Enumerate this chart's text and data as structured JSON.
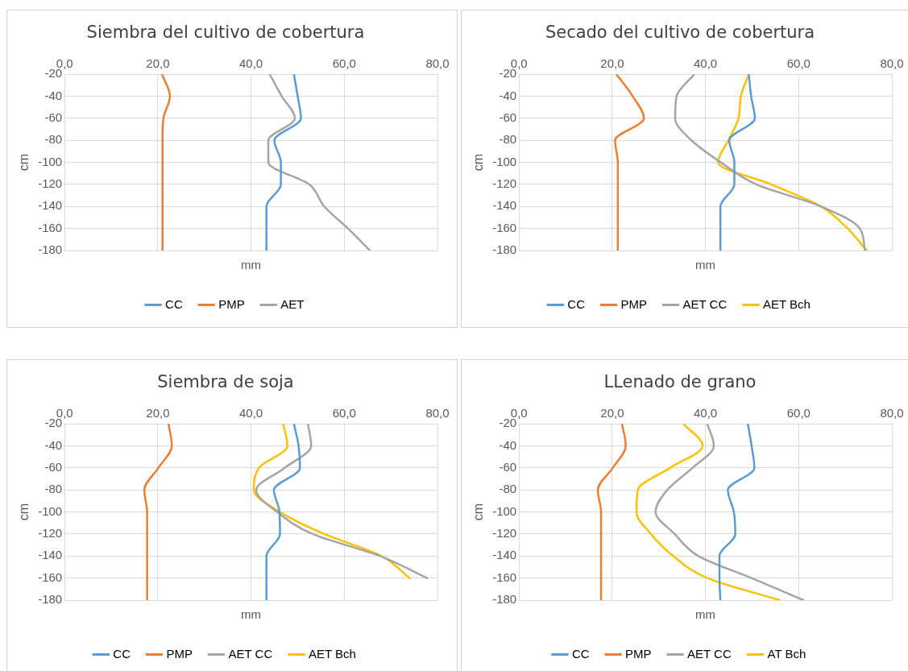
{
  "chart_data": [
    {
      "type": "line",
      "title": "Siembra del cultivo de cobertura",
      "xlabel": "mm",
      "ylabel": "cm",
      "xlim": [
        0,
        80
      ],
      "ylim": [
        -180,
        -20
      ],
      "xticks": [
        {
          "value": 0,
          "label": "0,0"
        },
        {
          "value": 20,
          "label": "20,0"
        },
        {
          "value": 40,
          "label": "40,0"
        },
        {
          "value": 60,
          "label": "60,0"
        },
        {
          "value": 80,
          "label": "80,0"
        }
      ],
      "yticks": [
        -20,
        -40,
        -60,
        -80,
        -100,
        -120,
        -140,
        -160,
        -180
      ],
      "grid": true,
      "legend": "bottom",
      "marker": "none",
      "line_style": "solid",
      "series": [
        {
          "name": "CC",
          "color": "#5b9bd5",
          "x": [
            49.2,
            50.0,
            50.7,
            45.0,
            46.4,
            46.4,
            43.3,
            43.3,
            43.3
          ],
          "values": [
            -20,
            -40,
            -60,
            -80,
            -100,
            -120,
            -140,
            -160,
            -180
          ]
        },
        {
          "name": "PMP",
          "color": "#ed7d31",
          "x": [
            20.9,
            22.6,
            21.2,
            21.0,
            21.0,
            21.0,
            21.0,
            21.0,
            21.0
          ],
          "values": [
            -20,
            -40,
            -60,
            -80,
            -100,
            -120,
            -140,
            -160,
            -180
          ]
        },
        {
          "name": "AET",
          "color": "#a5a5a5",
          "x": [
            44.0,
            46.6,
            49.4,
            43.7,
            43.7,
            52.5,
            55.7,
            60.8,
            65.5
          ],
          "values": [
            -20,
            -40,
            -60,
            -80,
            -100,
            -120,
            -140,
            -160,
            -180
          ]
        }
      ]
    },
    {
      "type": "line",
      "title": "Secado del cultivo de cobertura",
      "xlabel": "mm",
      "ylabel": "cm",
      "xlim": [
        0,
        80
      ],
      "ylim": [
        -180,
        -20
      ],
      "xticks": [
        {
          "value": 0,
          "label": "0,0"
        },
        {
          "value": 20,
          "label": "20,0"
        },
        {
          "value": 40,
          "label": "40,0"
        },
        {
          "value": 60,
          "label": "60,0"
        },
        {
          "value": 80,
          "label": "80,0"
        }
      ],
      "yticks": [
        -20,
        -40,
        -60,
        -80,
        -100,
        -120,
        -140,
        -160,
        -180
      ],
      "grid": true,
      "legend": "bottom",
      "marker": "none",
      "line_style": "solid",
      "series": [
        {
          "name": "CC",
          "color": "#5b9bd5",
          "x": [
            49.3,
            49.8,
            50.6,
            45.1,
            46.2,
            46.2,
            43.2,
            43.2,
            43.2
          ],
          "values": [
            -20,
            -40,
            -60,
            -80,
            -100,
            -120,
            -140,
            -160,
            -180
          ]
        },
        {
          "name": "PMP",
          "color": "#ed7d31",
          "x": [
            20.9,
            24.4,
            26.8,
            20.6,
            21.2,
            21.2,
            21.2,
            21.2,
            21.2
          ],
          "values": [
            -20,
            -40,
            -60,
            -80,
            -100,
            -120,
            -140,
            -160,
            -180
          ]
        },
        {
          "name": "AET CC",
          "color": "#a5a5a5",
          "x": [
            37.6,
            33.8,
            33.5,
            37.0,
            43.3,
            50.9,
            64.8,
            73.1,
            74.2
          ],
          "values": [
            -20,
            -40,
            -60,
            -80,
            -100,
            -120,
            -140,
            -160,
            -180
          ]
        },
        {
          "name": "AET Bch",
          "color": "#ffc000",
          "x": [
            49.3,
            47.6,
            47.1,
            44.9,
            42.7,
            54.1,
            64.8,
            70.5,
            74.6
          ],
          "values": [
            -20,
            -40,
            -60,
            -80,
            -100,
            -120,
            -140,
            -160,
            -180
          ]
        }
      ]
    },
    {
      "type": "line",
      "title": "Siembra de soja",
      "xlabel": "mm",
      "ylabel": "cm",
      "xlim": [
        0,
        80
      ],
      "ylim": [
        -180,
        -20
      ],
      "xticks": [
        {
          "value": 0,
          "label": "0,0"
        },
        {
          "value": 20,
          "label": "20,0"
        },
        {
          "value": 40,
          "label": "40,0"
        },
        {
          "value": 60,
          "label": "60,0"
        },
        {
          "value": 80,
          "label": "80,0"
        }
      ],
      "yticks": [
        -20,
        -40,
        -60,
        -80,
        -100,
        -120,
        -140,
        -160,
        -180
      ],
      "grid": true,
      "legend": "bottom",
      "marker": "none",
      "line_style": "solid",
      "series": [
        {
          "name": "CC",
          "color": "#5b9bd5",
          "x": [
            49.2,
            50.2,
            50.5,
            44.9,
            46.1,
            46.2,
            43.3,
            43.3,
            43.3
          ],
          "values": [
            -20,
            -40,
            -60,
            -80,
            -100,
            -120,
            -140,
            -160,
            -180
          ]
        },
        {
          "name": "PMP",
          "color": "#ed7d31",
          "x": [
            22.3,
            23.0,
            20.1,
            17.1,
            17.7,
            17.7,
            17.7,
            17.7,
            17.7
          ],
          "values": [
            -20,
            -40,
            -60,
            -80,
            -100,
            -120,
            -140,
            -160,
            -180
          ]
        },
        {
          "name": "AET CC",
          "color": "#a5a5a5",
          "x": [
            52.2,
            52.9,
            47.2,
            41.1,
            45.6,
            53.2,
            67.7,
            77.8
          ],
          "values": [
            -20,
            -40,
            -60,
            -80,
            -100,
            -120,
            -140,
            -160
          ]
        },
        {
          "name": "AET Bch",
          "color": "#ffc000",
          "x": [
            46.9,
            47.8,
            41.7,
            40.6,
            46.2,
            55.7,
            68.0,
            74.0
          ],
          "values": [
            -20,
            -40,
            -60,
            -80,
            -100,
            -120,
            -140,
            -160
          ]
        }
      ]
    },
    {
      "type": "line",
      "title": "LLenado de grano",
      "xlabel": "mm",
      "ylabel": "cm",
      "xlim": [
        0,
        80
      ],
      "ylim": [
        -180,
        -20
      ],
      "xticks": [
        {
          "value": 0,
          "label": "0,0"
        },
        {
          "value": 20,
          "label": "20,0"
        },
        {
          "value": 40,
          "label": "40,0"
        },
        {
          "value": 60,
          "label": "60,0"
        },
        {
          "value": 80,
          "label": "80,0"
        }
      ],
      "yticks": [
        -20,
        -40,
        -60,
        -80,
        -100,
        -120,
        -140,
        -160,
        -180
      ],
      "grid": true,
      "legend": "bottom",
      "marker": "none",
      "line_style": "solid",
      "series": [
        {
          "name": "CC",
          "color": "#5b9bd5",
          "x": [
            49.1,
            49.9,
            50.5,
            44.8,
            46.1,
            46.4,
            43.0,
            43.0,
            43.2
          ],
          "values": [
            -20,
            -40,
            -60,
            -80,
            -100,
            -120,
            -140,
            -160,
            -180
          ]
        },
        {
          "name": "PMP",
          "color": "#ed7d31",
          "x": [
            22.1,
            22.9,
            20.1,
            16.9,
            17.6,
            17.6,
            17.6,
            17.6,
            17.6
          ],
          "values": [
            -20,
            -40,
            -60,
            -80,
            -100,
            -120,
            -140,
            -160,
            -180
          ]
        },
        {
          "name": "AET CC",
          "color": "#a5a5a5",
          "x": [
            40.4,
            41.8,
            37.2,
            31.8,
            29.3,
            33.4,
            38.5,
            49.9,
            61.0
          ],
          "values": [
            -20,
            -40,
            -60,
            -80,
            -100,
            -120,
            -140,
            -160,
            -180
          ]
        },
        {
          "name": "AT Bch",
          "color": "#ffc000",
          "x": [
            35.3,
            39.4,
            32.4,
            25.5,
            25.2,
            28.3,
            33.1,
            40.4,
            55.9
          ],
          "values": [
            -20,
            -40,
            -60,
            -80,
            -100,
            -120,
            -140,
            -160,
            -180
          ]
        }
      ]
    }
  ]
}
